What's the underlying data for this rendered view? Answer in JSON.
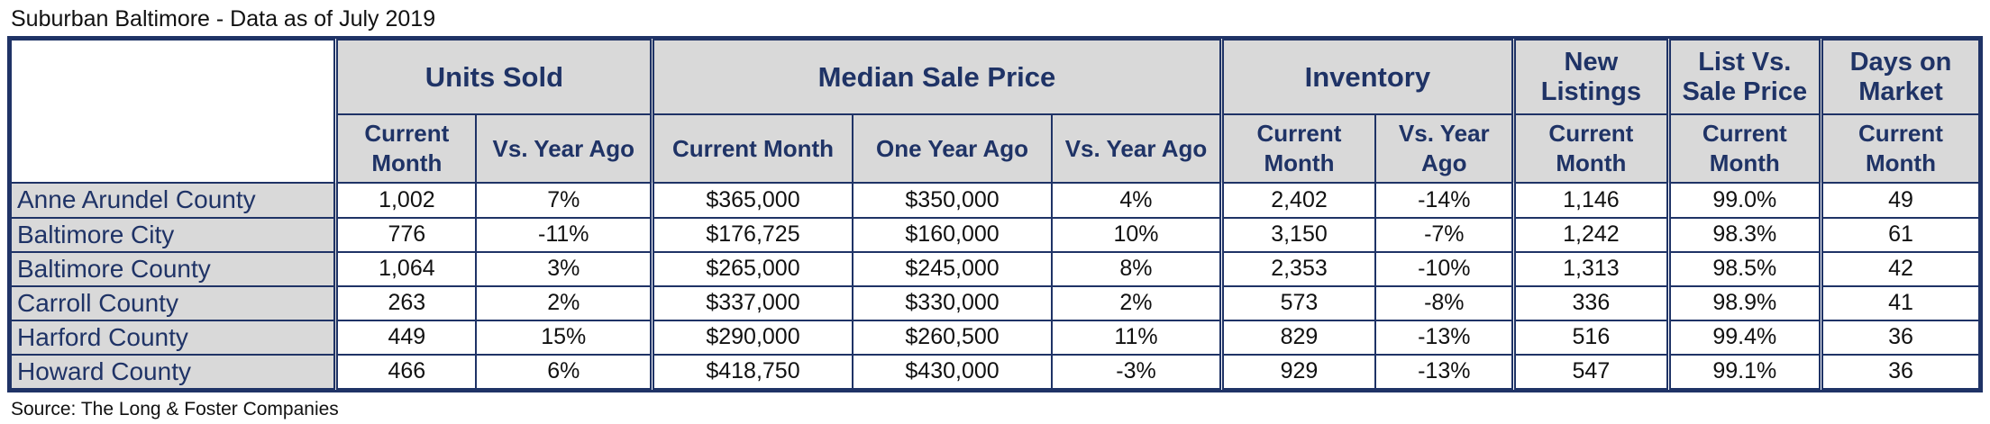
{
  "title": "Suburban Baltimore - Data as of July 2019",
  "source": "Source: The Long & Foster Companies",
  "header": {
    "groups": {
      "units_sold": "Units Sold",
      "median_sale_price": "Median Sale Price",
      "inventory": "Inventory",
      "new_listings": "New Listings",
      "list_vs_sale": "List Vs. Sale Price",
      "days_on_market": "Days on Market"
    },
    "sub": {
      "units_current": "Current Month",
      "units_vs": "Vs. Year Ago",
      "price_current": "Current Month",
      "price_year_ago": "One Year Ago",
      "price_vs": "Vs. Year Ago",
      "inv_current": "Current Month",
      "inv_vs": "Vs. Year Ago",
      "new_current": "Current Month",
      "list_current": "Current Month",
      "dom_current": "Current Month"
    }
  },
  "rows": [
    {
      "name": "Anne Arundel County",
      "cells": [
        "1,002",
        "7%",
        "$365,000",
        "$350,000",
        "4%",
        "2,402",
        "-14%",
        "1,146",
        "99.0%",
        "49"
      ]
    },
    {
      "name": "Baltimore City",
      "cells": [
        "776",
        "-11%",
        "$176,725",
        "$160,000",
        "10%",
        "3,150",
        "-7%",
        "1,242",
        "98.3%",
        "61"
      ]
    },
    {
      "name": "Baltimore County",
      "cells": [
        "1,064",
        "3%",
        "$265,000",
        "$245,000",
        "8%",
        "2,353",
        "-10%",
        "1,313",
        "98.5%",
        "42"
      ]
    },
    {
      "name": "Carroll County",
      "cells": [
        "263",
        "2%",
        "$337,000",
        "$330,000",
        "2%",
        "573",
        "-8%",
        "336",
        "98.9%",
        "41"
      ]
    },
    {
      "name": "Harford County",
      "cells": [
        "449",
        "15%",
        "$290,000",
        "$260,500",
        "11%",
        "829",
        "-13%",
        "516",
        "99.4%",
        "36"
      ]
    },
    {
      "name": "Howard County",
      "cells": [
        "466",
        "6%",
        "$418,750",
        "$430,000",
        "-3%",
        "929",
        "-13%",
        "547",
        "99.1%",
        "36"
      ]
    }
  ]
}
